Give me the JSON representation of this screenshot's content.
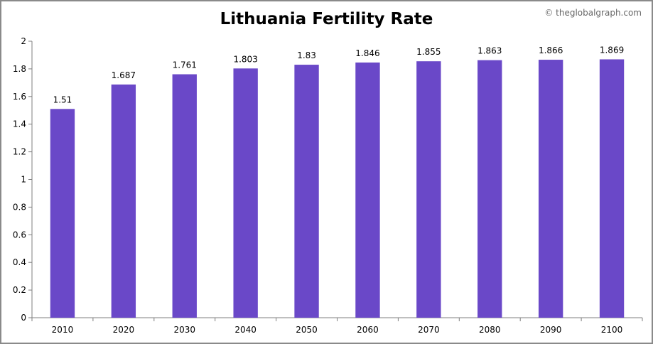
{
  "credit": "© theglobalgraph.com",
  "colors": {
    "bar": "#6a48c8",
    "axis": "#7f7f7f",
    "border": "#8a8a8a"
  },
  "chart_data": {
    "type": "bar",
    "title": "Lithuania Fertility Rate",
    "xlabel": "",
    "ylabel": "",
    "categories": [
      "2010",
      "2020",
      "2030",
      "2040",
      "2050",
      "2060",
      "2070",
      "2080",
      "2090",
      "2100"
    ],
    "values": [
      1.51,
      1.687,
      1.761,
      1.803,
      1.83,
      1.846,
      1.855,
      1.863,
      1.866,
      1.869
    ],
    "data_labels": [
      "1.51",
      "1.687",
      "1.761",
      "1.803",
      "1.83",
      "1.846",
      "1.855",
      "1.863",
      "1.866",
      "1.869"
    ],
    "ylim": [
      0,
      2
    ],
    "yticks": [
      0,
      0.2,
      0.4,
      0.6,
      0.8,
      1,
      1.2,
      1.4,
      1.6,
      1.8,
      2
    ],
    "ytick_labels": [
      "0",
      "0.2",
      "0.4",
      "0.6",
      "0.8",
      "1",
      "1.2",
      "1.4",
      "1.6",
      "1.8",
      "2"
    ],
    "grid": false,
    "legend": "none"
  }
}
